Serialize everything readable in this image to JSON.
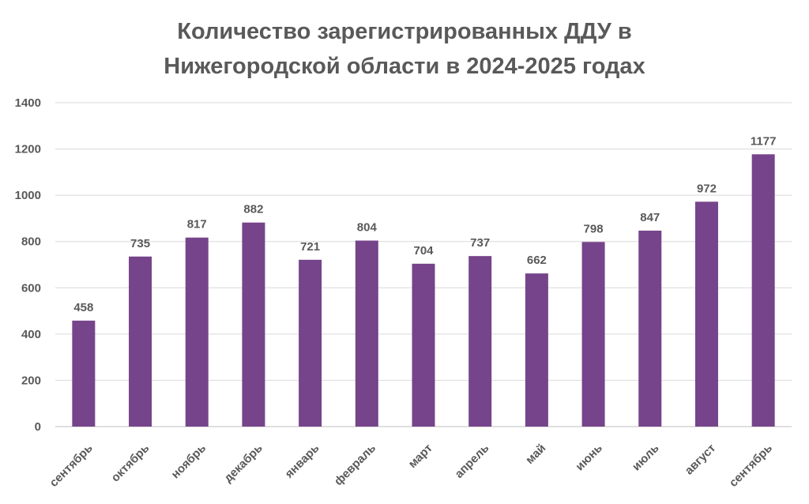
{
  "chart_data": {
    "type": "bar",
    "title_line1": "Количество зарегистрированных ДДУ в",
    "title_line2": "Нижегородской области в 2024-2025 годах",
    "categories": [
      "сентябрь",
      "октябрь",
      "ноябрь",
      "декабрь",
      "январь",
      "февраль",
      "март",
      "апрель",
      "май",
      "июнь",
      "июль",
      "август",
      "сентябрь"
    ],
    "values": [
      458,
      735,
      817,
      882,
      721,
      804,
      704,
      737,
      662,
      798,
      847,
      972,
      1177
    ],
    "ylim": [
      0,
      1400
    ],
    "yticks": [
      0,
      200,
      400,
      600,
      800,
      1000,
      1200,
      1400
    ],
    "grid": true,
    "xlabel": "",
    "ylabel": "",
    "bar_color": "#76448A",
    "grid_color": "#D9D9D9",
    "text_color": "#595959"
  }
}
